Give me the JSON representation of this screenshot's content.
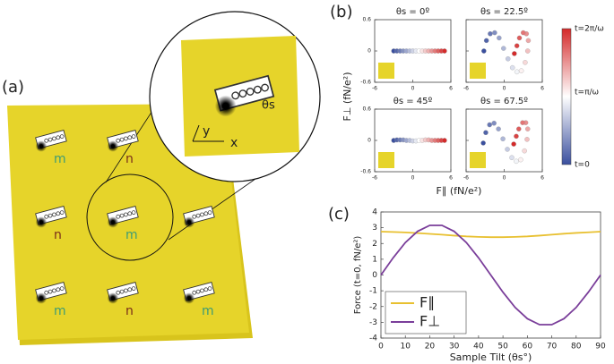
{
  "panel_labels": [
    "(a)",
    "(b)",
    "(c)"
  ],
  "diagram": {
    "sites": [
      "m",
      "n",
      "n",
      "m",
      "m",
      "n",
      "m"
    ],
    "site_colors": {
      "m": "#3f9c74",
      "n": "#7a2e1a"
    },
    "zoom": {
      "angle": "θs",
      "y_axis": "y",
      "x_axis": "x"
    }
  },
  "panel_b": {
    "xlabel": "F∥ (fN/e²)",
    "ylabel": "F⊥ (fN/e²)",
    "colormap": [
      "#3a4f9e",
      "#ffffff",
      "#d42a2a"
    ],
    "colorbar_labels": [
      "t=2π/ω",
      "t=π/ω",
      "t=0"
    ]
  },
  "chart_data": [
    {
      "type": "scatter",
      "title": "θs = 0º",
      "xlim": [
        -6,
        6
      ],
      "xticks": [
        -6,
        0,
        6
      ],
      "ylim": [
        -0.6,
        0.6
      ],
      "yticks": [
        -0.6,
        0,
        0.6
      ],
      "x": [
        -3,
        -2.5,
        -2,
        -1.5,
        -1,
        -0.5,
        0,
        0.5,
        1,
        1.5,
        2,
        2.5,
        3,
        3.5,
        4,
        4.5,
        5
      ],
      "y": [
        0,
        0,
        0,
        0,
        0,
        0,
        0,
        0,
        0,
        0,
        0,
        0,
        0,
        0,
        0,
        0,
        0
      ]
    },
    {
      "type": "scatter",
      "title": "θs = 22.5º",
      "xlim": [
        -6,
        6
      ],
      "xticks": [
        -6,
        0,
        6
      ],
      "ylim": [
        -0.6,
        0.6
      ],
      "yticks": [
        -0.6,
        0,
        0.6
      ],
      "x": [
        -3.2,
        -2.8,
        -2.2,
        -1.5,
        -0.8,
        -0.1,
        0.6,
        1.3,
        2,
        2.7,
        3.3,
        3.7,
        3.8,
        3.5,
        3,
        2.4,
        2,
        1.6
      ],
      "y": [
        0,
        0.2,
        0.33,
        0.35,
        0.25,
        0.05,
        -0.15,
        -0.32,
        -0.4,
        -0.38,
        -0.22,
        0,
        0.2,
        0.33,
        0.35,
        0.25,
        0.1,
        -0.05
      ]
    },
    {
      "type": "scatter",
      "title": "θs = 45º",
      "xlim": [
        -6,
        6
      ],
      "xticks": [
        -6,
        0,
        6
      ],
      "ylim": [
        -0.6,
        0.6
      ],
      "yticks": [
        -0.6,
        0,
        0.6
      ],
      "x": [
        -3,
        -2.5,
        -2,
        -1.5,
        -1,
        -0.5,
        0,
        0.5,
        1,
        1.5,
        2,
        2.5,
        3,
        3.5,
        4,
        4.5,
        5
      ],
      "y": [
        0,
        0.01,
        0.01,
        0.01,
        0,
        0,
        -0.01,
        -0.01,
        0,
        0,
        0.01,
        0.01,
        0,
        0,
        0,
        0,
        0
      ]
    },
    {
      "type": "scatter",
      "title": "θs = 67.5º",
      "xlim": [
        -6,
        6
      ],
      "xticks": [
        -6,
        0,
        6
      ],
      "ylim": [
        -0.6,
        0.6
      ],
      "yticks": [
        -0.6,
        0,
        0.6
      ],
      "x": [
        -3.3,
        -2.9,
        -2.3,
        -1.6,
        -0.9,
        -0.2,
        0.5,
        1.2,
        1.9,
        2.6,
        3.2,
        3.6,
        3.7,
        3.4,
        2.9,
        2.3,
        1.9,
        1.5
      ],
      "y": [
        -0.05,
        0.15,
        0.3,
        0.33,
        0.22,
        0.03,
        -0.17,
        -0.33,
        -0.4,
        -0.37,
        -0.2,
        0.02,
        0.22,
        0.34,
        0.34,
        0.22,
        0.08,
        -0.07
      ]
    },
    {
      "type": "line",
      "xlabel": "Sample Tilt (θs°)",
      "ylabel": "Force (t=0, fN/e²)",
      "xlim": [
        0,
        90
      ],
      "xticks": [
        0,
        10,
        20,
        30,
        40,
        50,
        60,
        70,
        80,
        90
      ],
      "ylim": [
        -4,
        4
      ],
      "yticks": [
        -4,
        -3,
        -2,
        -1,
        0,
        1,
        2,
        3,
        4
      ],
      "legend": "bottom-left",
      "x": [
        0,
        5,
        10,
        15,
        20,
        25,
        30,
        35,
        40,
        45,
        50,
        55,
        60,
        65,
        70,
        75,
        80,
        85,
        90
      ],
      "series": [
        {
          "name": "F∥",
          "color": "#e8c030",
          "values": [
            2.75,
            2.73,
            2.7,
            2.66,
            2.61,
            2.56,
            2.5,
            2.45,
            2.42,
            2.4,
            2.4,
            2.42,
            2.45,
            2.5,
            2.56,
            2.62,
            2.67,
            2.71,
            2.75
          ]
        },
        {
          "name": "F⊥",
          "color": "#7a3e9a",
          "values": [
            0,
            1.09,
            2.06,
            2.77,
            3.15,
            3.15,
            2.77,
            2.06,
            1.09,
            0,
            -1.09,
            -2.06,
            -2.77,
            -3.15,
            -3.15,
            -2.77,
            -2.06,
            -1.09,
            0
          ]
        }
      ]
    }
  ]
}
